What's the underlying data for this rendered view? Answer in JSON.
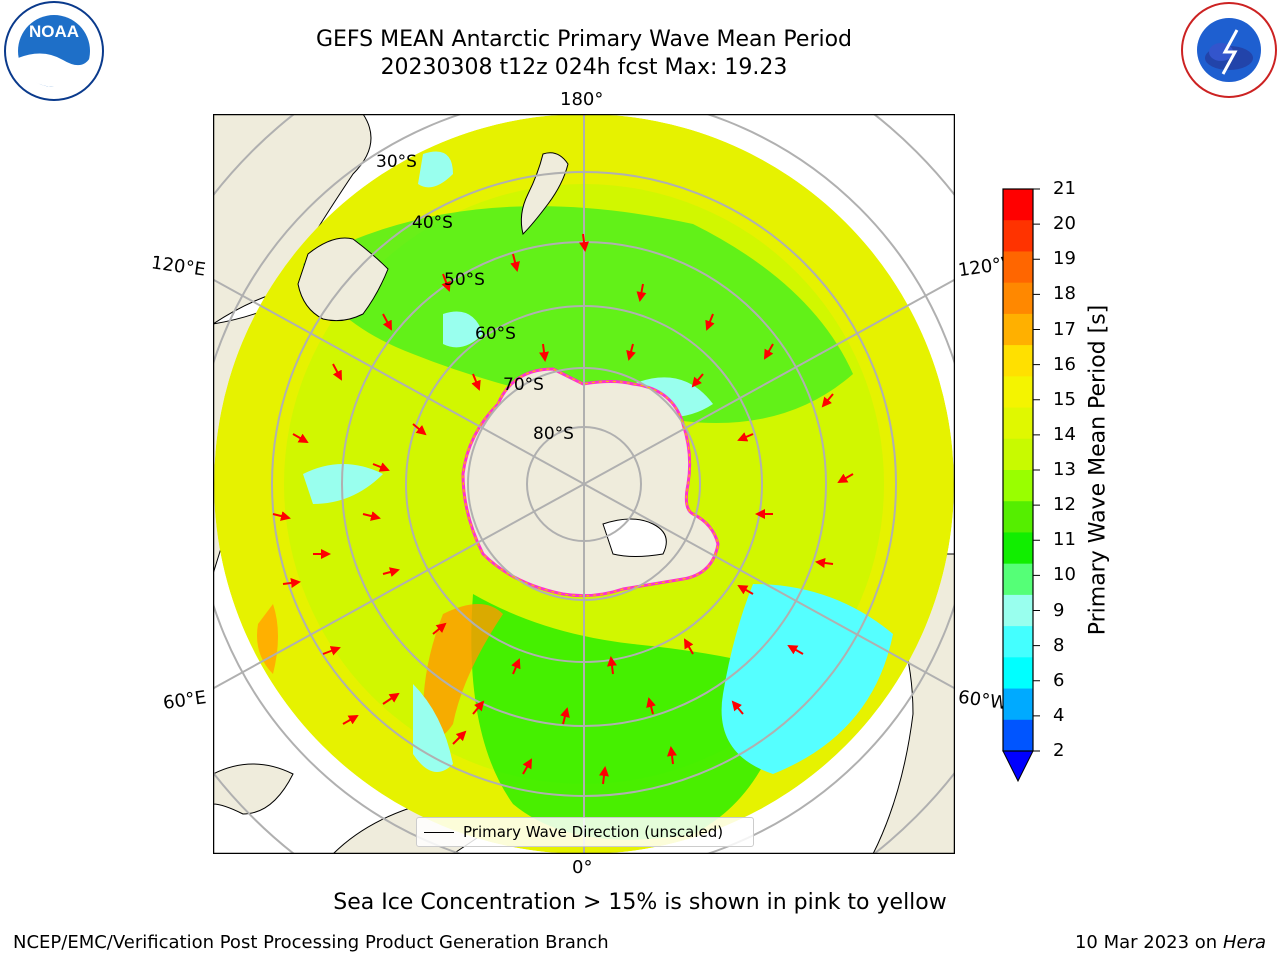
{
  "header": {
    "title_line1": "GEFS MEAN Antarctic Primary Wave Mean Period",
    "title_line2": "20230308 t12z 024h fcst   Max: 19.23"
  },
  "logos": {
    "left": {
      "icon": "noaa-logo",
      "text": "NOAA",
      "ring_text": "NATIONAL OCEANIC AND ATMOSPHERIC ADMINISTRATION · U.S. DEPARTMENT OF COMMERCE"
    },
    "right": {
      "icon": "nws-logo",
      "ring_text": "NATIONAL WEATHER SERVICE"
    }
  },
  "map": {
    "projection": "south-polar-stereographic",
    "longitude_labels": {
      "top": "180°",
      "bottom": "0°",
      "upper_left": "120°E",
      "upper_right": "120°W",
      "lower_left": "60°E",
      "lower_right": "60°W"
    },
    "latitude_labels": [
      "30°S",
      "40°S",
      "50°S",
      "60°S",
      "70°S",
      "80°S"
    ],
    "legend": {
      "line_label": "Primary Wave Direction (unscaled)"
    },
    "colors": {
      "land": "#efecdc",
      "ocean_base": "#e6f200",
      "arrow": "#ff0000",
      "sea_ice": "#ff33cc",
      "grid": "#b0b0b0"
    }
  },
  "colorbar": {
    "label": "Primary Wave Mean Period [s]",
    "ticks": [
      "21",
      "20",
      "19",
      "18",
      "17",
      "16",
      "15",
      "14",
      "13",
      "12",
      "11",
      "10",
      "9",
      "8",
      "6",
      "4",
      "2"
    ],
    "colors_top_to_bottom": [
      "#ff0000",
      "#ff3300",
      "#ff6600",
      "#ff8800",
      "#ffb000",
      "#ffe000",
      "#f4f400",
      "#e0f800",
      "#c8fa00",
      "#99ff00",
      "#55ee00",
      "#11ee00",
      "#55ff77",
      "#99ffee",
      "#44ffff",
      "#00ffff",
      "#00aaff",
      "#0055ff"
    ],
    "extend_color": "#0000ff"
  },
  "footnote": "Sea Ice Concentration > 15% is shown in pink to yellow",
  "footer": {
    "credit": "NCEP/EMC/Verification Post Processing Product Generation Branch",
    "date": "10 Mar 2023 on",
    "machine": "Hera"
  }
}
